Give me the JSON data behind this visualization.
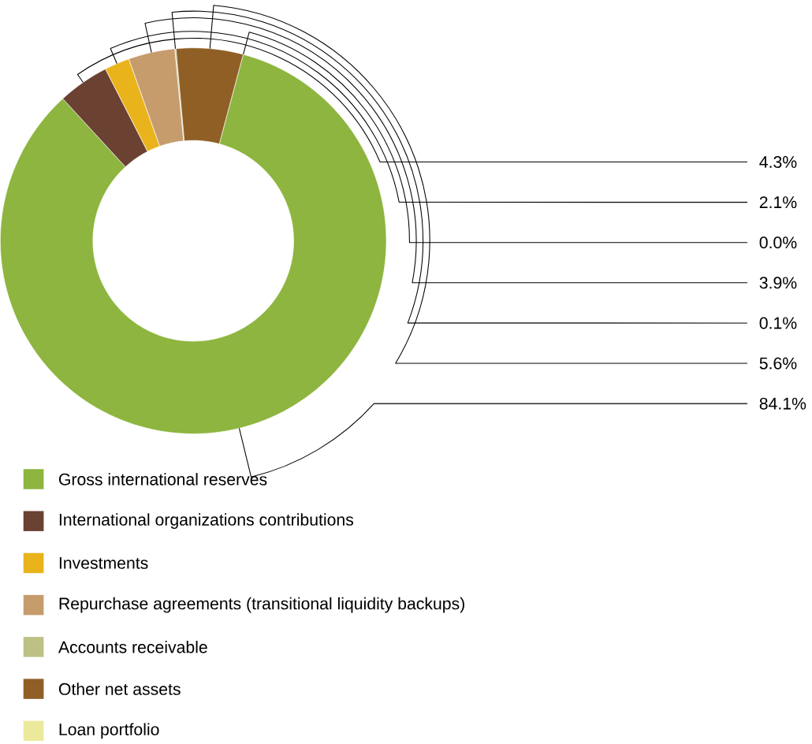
{
  "chart_data": {
    "type": "donut",
    "categories": [
      "Gross international reserves",
      "International organizations contributions",
      "Investments",
      "Repurchase agreements (transitional liquidity backups)",
      "Accounts receivable",
      "Other net assets",
      "Loan portfolio"
    ],
    "values": [
      84.1,
      4.3,
      2.1,
      3.9,
      0.1,
      5.6,
      0.0
    ],
    "value_labels": [
      "84.1%",
      "4.3%",
      "2.1%",
      "3.9%",
      "0.1%",
      "5.6%",
      "0.0%"
    ],
    "colors": [
      "#8db53f",
      "#6b4132",
      "#e9b31b",
      "#c69c6d",
      "#bdc185",
      "#8f5f25",
      "#ebe99c"
    ],
    "legend": "bottom"
  }
}
